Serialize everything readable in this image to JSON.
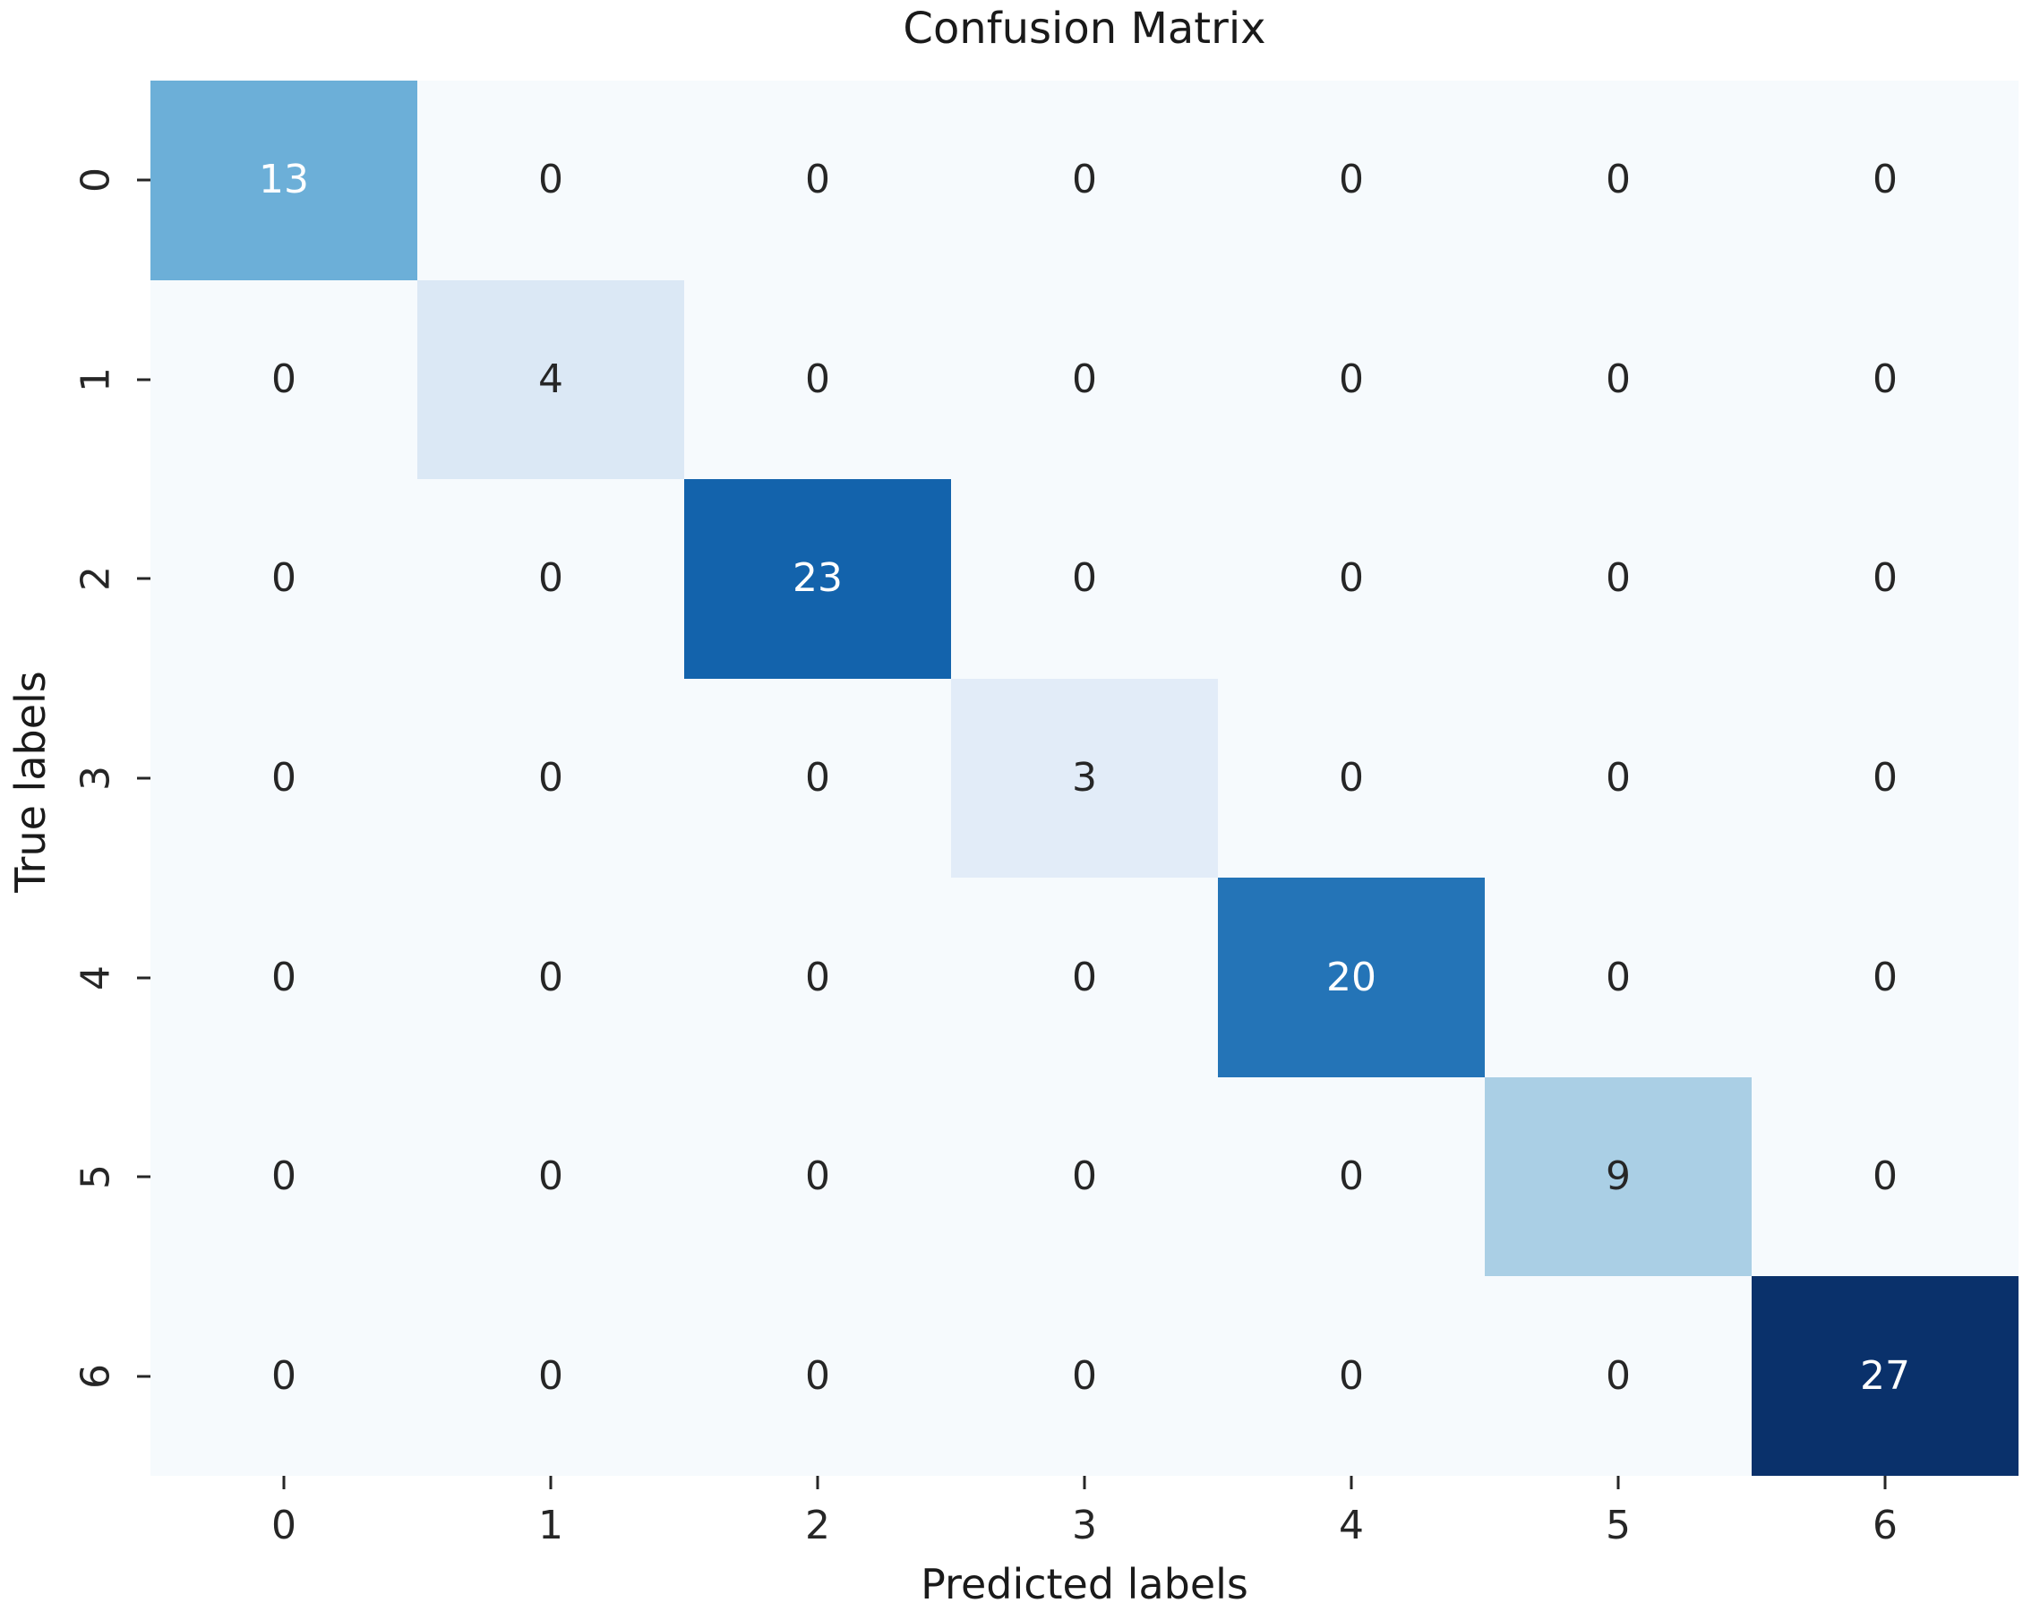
{
  "chart_data": {
    "type": "heatmap",
    "title": "Confusion Matrix",
    "xlabel": "Predicted labels",
    "ylabel": "True labels",
    "x_ticklabels": [
      "0",
      "1",
      "2",
      "3",
      "4",
      "5",
      "6"
    ],
    "y_ticklabels": [
      "0",
      "1",
      "2",
      "3",
      "4",
      "5",
      "6"
    ],
    "matrix": [
      [
        13,
        0,
        0,
        0,
        0,
        0,
        0
      ],
      [
        0,
        4,
        0,
        0,
        0,
        0,
        0
      ],
      [
        0,
        0,
        23,
        0,
        0,
        0,
        0
      ],
      [
        0,
        0,
        0,
        3,
        0,
        0,
        0
      ],
      [
        0,
        0,
        0,
        0,
        20,
        0,
        0
      ],
      [
        0,
        0,
        0,
        0,
        0,
        9,
        0
      ],
      [
        0,
        0,
        0,
        0,
        0,
        0,
        27
      ]
    ],
    "colormap": "Blues",
    "vmin": 0,
    "vmax": 27,
    "grid": false,
    "legend_position": "none",
    "value_colors": {
      "0": "#f6fafd",
      "3": "#e2ecf8",
      "4": "#dbe8f5",
      "9": "#aacfe5",
      "13": "#6cafd8",
      "20": "#2474b7",
      "23": "#1363ac",
      "27": "#0a316b"
    },
    "annotation_colors": {
      "light": "#ffffff",
      "dark": "#262626"
    },
    "luminance_threshold": 0.408
  },
  "colors": {
    "background": "#ffffff",
    "tick": "#262626",
    "text": "#1a1a1a"
  }
}
